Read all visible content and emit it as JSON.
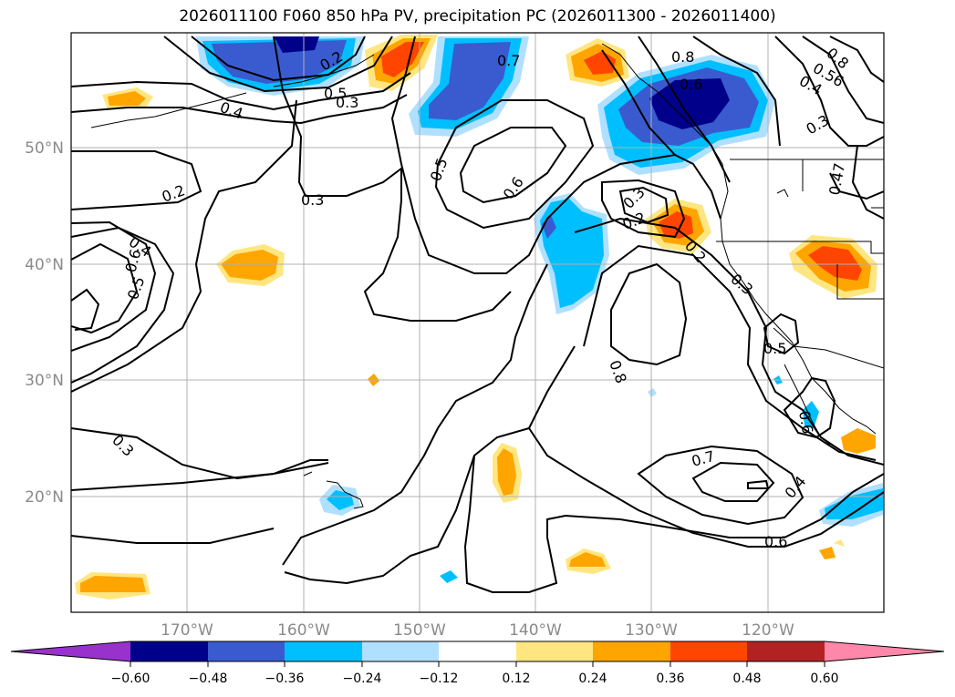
{
  "title": "2026011100 F060 850 hPa PV, precipitation PC (2026011300 - 2026011400)",
  "lat_labels": [
    "50°N",
    "40°N",
    "30°N",
    "20°N"
  ],
  "lon_labels": [
    "170°W",
    "160°W",
    "150°W",
    "140°W",
    "130°W",
    "120°W"
  ],
  "contour_labels": [
    "0.2",
    "0.3",
    "0.4",
    "0.5",
    "0.6",
    "0.7",
    "0.8",
    "0.2",
    "0.3",
    "0.4",
    "0.6",
    "0.5",
    "0.3",
    "0.5",
    "0.6",
    "0.2",
    "0.3",
    "0.7",
    "0.8",
    "0.6",
    "0.3",
    "0.47",
    "0.4",
    "0.3",
    "0.5",
    "0.6",
    "0.4",
    "0.8",
    "0.56",
    "0.2"
  ],
  "colorbar": {
    "colors": [
      "#9932cc",
      "#00008b",
      "#3a5bcf",
      "#00bfff",
      "#b0e0ff",
      "#ffffff",
      "#ffe680",
      "#ffa500",
      "#ff4500",
      "#b22222",
      "#ff88aa"
    ],
    "tick_labels": [
      "−0.60",
      "−0.48",
      "−0.36",
      "−0.24",
      "−0.12",
      "0.12",
      "0.24",
      "0.36",
      "0.48",
      "0.60"
    ]
  }
}
